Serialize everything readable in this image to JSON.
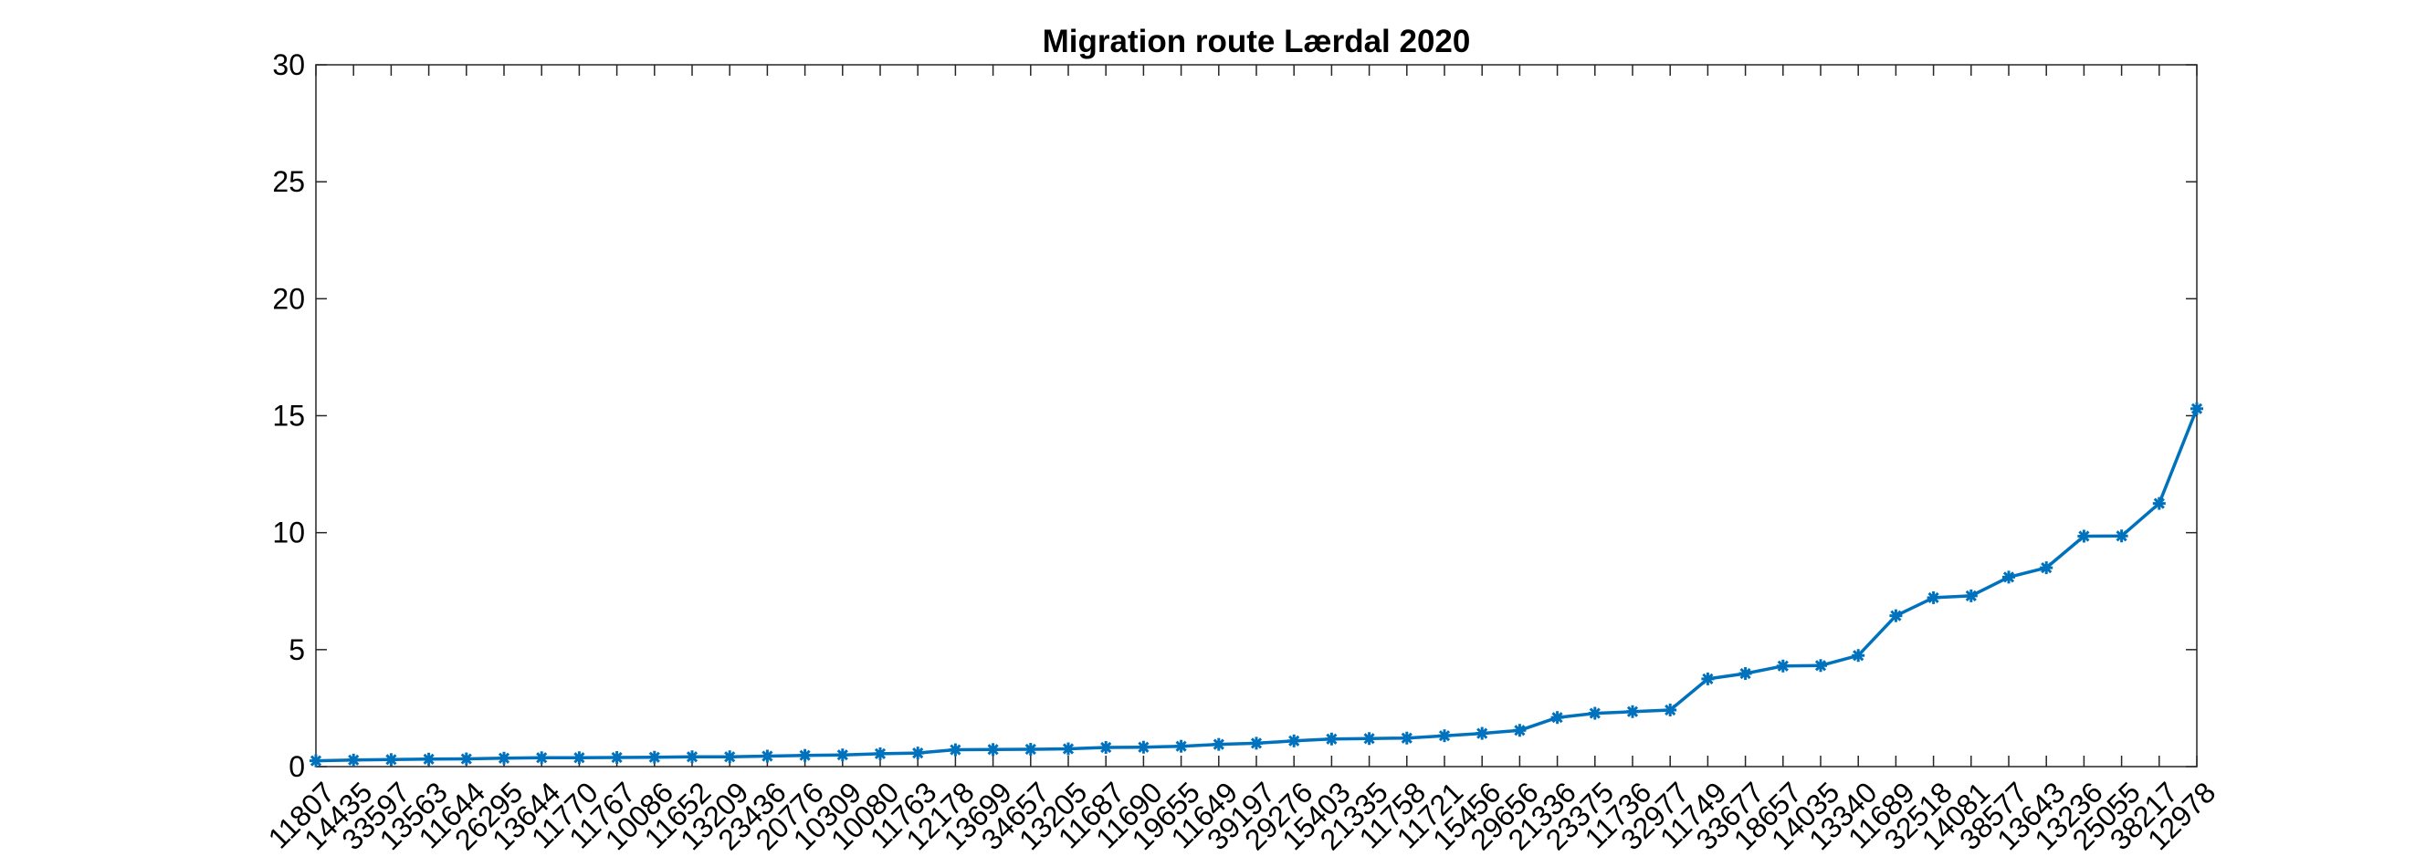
{
  "chart_data": {
    "type": "line",
    "title": "Migration route Lærdal 2020",
    "xlabel": "",
    "ylabel": "",
    "ylim": [
      0,
      30
    ],
    "yticks": [
      0,
      5,
      10,
      15,
      20,
      25,
      30
    ],
    "grid": false,
    "marker": "asterisk",
    "line_color": "#0072BD",
    "categories": [
      "11807",
      "14435",
      "33597",
      "13563",
      "11644",
      "26295",
      "13644",
      "11770",
      "11767",
      "10086",
      "11652",
      "13209",
      "23436",
      "20776",
      "10309",
      "10080",
      "11763",
      "12178",
      "13699",
      "34657",
      "13205",
      "11687",
      "11690",
      "19655",
      "11649",
      "39197",
      "29276",
      "15403",
      "21335",
      "11758",
      "11721",
      "15456",
      "29656",
      "21336",
      "23375",
      "11736",
      "32977",
      "11749",
      "33677",
      "18657",
      "14035",
      "13340",
      "11689",
      "32518",
      "14081",
      "38577",
      "13643",
      "13236",
      "25055",
      "38217",
      "12978"
    ],
    "values": [
      0.25,
      0.28,
      0.3,
      0.32,
      0.33,
      0.36,
      0.38,
      0.38,
      0.39,
      0.4,
      0.42,
      0.42,
      0.45,
      0.48,
      0.5,
      0.55,
      0.58,
      0.72,
      0.73,
      0.74,
      0.76,
      0.82,
      0.83,
      0.87,
      0.95,
      1.0,
      1.1,
      1.18,
      1.2,
      1.22,
      1.32,
      1.42,
      1.55,
      2.1,
      2.28,
      2.35,
      2.42,
      3.75,
      3.98,
      4.3,
      4.32,
      4.75,
      6.45,
      7.22,
      7.3,
      8.1,
      8.5,
      9.85,
      9.86,
      11.25,
      15.3
    ]
  }
}
